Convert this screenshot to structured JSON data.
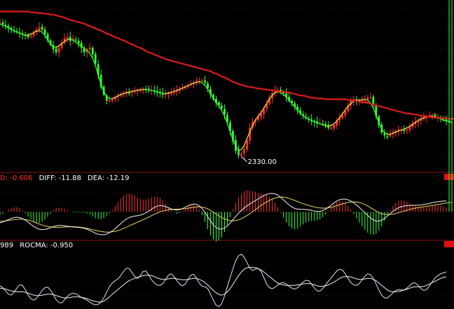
{
  "colors": {
    "background": "#000000",
    "grid": "#5a0a0a",
    "separator": "#8a1414",
    "up": "#ff3030",
    "down": "#33ff33",
    "ma_long": "#e01a1a",
    "ma_short": "#e8e840",
    "line_white": "#f2f2f2",
    "line_yellow": "#e8d860",
    "macd_label_prefix": "#ff3030",
    "label_text": "#ffffff",
    "roc_line": "#e0e0ff",
    "rocma_line": "#f2f2f2"
  },
  "chart_data": [
    {
      "type": "candlestick",
      "panel": "price",
      "ylim": [
        2315,
        2530
      ],
      "x_count": 160,
      "annotation": {
        "text": "2330.00",
        "index": 86,
        "value": 2330
      },
      "price": [
        2510,
        2507,
        2505,
        2502,
        2500,
        2498,
        2497,
        2496,
        2494,
        2492,
        2490,
        2492,
        2496,
        2500,
        2503,
        2500,
        2494,
        2486,
        2480,
        2474,
        2470,
        2476,
        2483,
        2489,
        2490,
        2485,
        2488,
        2486,
        2482,
        2476,
        2470,
        2474,
        2476,
        2467,
        2455,
        2440,
        2424,
        2414,
        2406,
        2406,
        2408,
        2411,
        2413,
        2414,
        2416,
        2418,
        2417,
        2418,
        2419,
        2420,
        2421,
        2422,
        2421,
        2420,
        2420,
        2419,
        2418,
        2416,
        2414,
        2415,
        2416,
        2417,
        2418,
        2420,
        2421,
        2423,
        2424,
        2426,
        2428,
        2430,
        2431,
        2432,
        2433,
        2430,
        2422,
        2414,
        2408,
        2403,
        2400,
        2396,
        2388,
        2378,
        2366,
        2353,
        2340,
        2334,
        2336,
        2342,
        2354,
        2370,
        2378,
        2380,
        2385,
        2389,
        2395,
        2402,
        2410,
        2416,
        2419,
        2420,
        2418,
        2416,
        2411,
        2406,
        2403,
        2398,
        2393,
        2389,
        2386,
        2383,
        2381,
        2380,
        2378,
        2376,
        2376,
        2375,
        2373,
        2370,
        2370,
        2374,
        2380,
        2384,
        2387,
        2393,
        2400,
        2406,
        2408,
        2406,
        2406,
        2407,
        2407,
        2410,
        2411,
        2400,
        2386,
        2374,
        2364,
        2360,
        2359,
        2362,
        2363,
        2365,
        2368,
        2368,
        2367,
        2368,
        2372,
        2376,
        2378,
        2380,
        2382,
        2384,
        2386,
        2386,
        2387,
        2384,
        2384,
        2382,
        2381,
        2379,
        2377,
        2377
      ],
      "ma_long": [
        2524,
        2524,
        2524,
        2524,
        2524,
        2524,
        2524,
        2524,
        2524,
        2524,
        2524,
        2523,
        2523,
        2522,
        2522,
        2522,
        2521,
        2521,
        2520,
        2520,
        2519,
        2518,
        2517,
        2516,
        2514,
        2513,
        2512,
        2511,
        2510,
        2509,
        2508,
        2506,
        2505,
        2503,
        2502,
        2500,
        2499,
        2497,
        2495,
        2494,
        2492,
        2490,
        2489,
        2487,
        2486,
        2484,
        2482,
        2481,
        2479,
        2477,
        2476,
        2474,
        2472,
        2470,
        2469,
        2467,
        2466,
        2464,
        2463,
        2461,
        2460,
        2459,
        2458,
        2457,
        2456,
        2455,
        2454,
        2453,
        2452,
        2451,
        2450,
        2449,
        2448,
        2447,
        2446,
        2445,
        2443,
        2442,
        2440,
        2438,
        2437,
        2435,
        2433,
        2431,
        2430,
        2428,
        2427,
        2426,
        2425,
        2424,
        2424,
        2423,
        2422,
        2422,
        2421,
        2421,
        2420,
        2420,
        2419,
        2419,
        2418,
        2418,
        2417,
        2417,
        2416,
        2415,
        2414,
        2413,
        2413,
        2412,
        2411,
        2410,
        2410,
        2409,
        2409,
        2409,
        2408,
        2408,
        2408,
        2408,
        2408,
        2408,
        2408,
        2408,
        2407,
        2407,
        2406,
        2406,
        2405,
        2404,
        2404,
        2403,
        2402,
        2401,
        2400,
        2399,
        2398,
        2397,
        2396,
        2395,
        2394,
        2393,
        2392,
        2391,
        2390,
        2389,
        2389,
        2388,
        2388,
        2387,
        2386,
        2386,
        2385,
        2385,
        2384,
        2384,
        2384,
        2383,
        2383,
        2383,
        2382,
        2382,
        2382,
        2382
      ],
      "ma_long_name": "",
      "ma_short_name": ""
    },
    {
      "type": "macd",
      "panel": "macd",
      "header": {
        "prefix": "D: -0.606",
        "diff": "DIFF: -11.88",
        "dea": "DEA: -12.19"
      },
      "ylim": [
        -17,
        19
      ],
      "diff": [
        -6.7,
        -6.2,
        -5.5,
        -4.7,
        -4.0,
        -3.5,
        -3.3,
        -3.5,
        -4.1,
        -5.1,
        -6.3,
        -7.6,
        -8.9,
        -10.0,
        -10.6,
        -10.9,
        -10.8,
        -10.3,
        -9.7,
        -9.0,
        -8.6,
        -8.3,
        -8.3,
        -8.5,
        -8.8,
        -9.0,
        -9.3,
        -9.4,
        -9.5,
        -9.7,
        -10.1,
        -10.6,
        -11.3,
        -12.2,
        -13.1,
        -13.7,
        -14.0,
        -14.0,
        -13.6,
        -12.8,
        -11.7,
        -10.3,
        -8.8,
        -7.2,
        -5.7,
        -4.5,
        -3.5,
        -2.9,
        -2.6,
        -2.3,
        -2.0,
        -1.4,
        -0.6,
        0.4,
        1.6,
        2.7,
        3.5,
        3.9,
        3.7,
        3.2,
        2.5,
        1.8,
        1.3,
        1.1,
        1.4,
        2.0,
        2.8,
        3.7,
        4.4,
        4.8,
        4.6,
        3.7,
        2.0,
        -0.3,
        -3.0,
        -5.6,
        -7.9,
        -9.6,
        -10.5,
        -10.6,
        -9.9,
        -8.6,
        -6.8,
        -4.8,
        -2.8,
        -0.9,
        0.8,
        2.4,
        3.7,
        4.8,
        5.9,
        6.9,
        8.0,
        9.0,
        9.9,
        10.7,
        11.2,
        11.3,
        11.0,
        10.2,
        8.9,
        7.4,
        5.7,
        4.2,
        3.0,
        2.1,
        1.7,
        1.5,
        1.5,
        1.4,
        1.2,
        0.9,
        0.5,
        0.3,
        0.3,
        0.8,
        1.6,
        2.8,
        4.1,
        5.5,
        6.6,
        7.4,
        7.8,
        7.8,
        7.4,
        6.6,
        5.5,
        4.2,
        2.7,
        1.1,
        -0.5,
        -2.2,
        -3.7,
        -4.9,
        -5.6,
        -5.7,
        -5.1,
        -4.0,
        -2.6,
        -1.1,
        0.3,
        1.5,
        2.5,
        3.1,
        3.6,
        3.8,
        3.9,
        4.0,
        4.0,
        4.1,
        4.2,
        4.5,
        4.8,
        5.2,
        5.6,
        5.9,
        6.2,
        6.4,
        6.6,
        6.6
      ],
      "dea": [
        -5.8,
        -5.7,
        -5.5,
        -5.3,
        -5.0,
        -4.8,
        -4.6,
        -4.5,
        -4.5,
        -4.7,
        -5.0,
        -5.5,
        -6.1,
        -6.8,
        -7.5,
        -8.1,
        -8.6,
        -8.9,
        -9.2,
        -9.4,
        -9.5,
        -9.5,
        -9.4,
        -9.3,
        -9.2,
        -9.1,
        -9.1,
        -9.2,
        -9.3,
        -9.5,
        -9.8,
        -10.1,
        -10.5,
        -10.9,
        -11.3,
        -11.7,
        -12.0,
        -12.3,
        -12.4,
        -12.4,
        -12.2,
        -11.9,
        -11.5,
        -10.9,
        -10.2,
        -9.4,
        -8.6,
        -7.8,
        -7.1,
        -6.3,
        -5.6,
        -4.8,
        -4.0,
        -3.2,
        -2.3,
        -1.5,
        -0.7,
        0.0,
        0.5,
        0.9,
        1.2,
        1.4,
        1.5,
        1.6,
        1.7,
        1.8,
        2.0,
        2.2,
        2.5,
        2.8,
        3.0,
        3.1,
        2.9,
        2.5,
        1.8,
        0.9,
        -0.2,
        -1.3,
        -2.5,
        -3.5,
        -4.3,
        -4.9,
        -5.3,
        -5.5,
        -5.3,
        -4.9,
        -4.2,
        -3.3,
        -2.3,
        -1.1,
        0.1,
        1.4,
        2.7,
        3.9,
        5.0,
        6.0,
        7.0,
        7.8,
        8.5,
        8.9,
        9.1,
        9.0,
        8.7,
        8.2,
        7.6,
        7.0,
        6.3,
        5.6,
        5.0,
        4.4,
        3.9,
        3.4,
        3.0,
        2.6,
        2.4,
        2.3,
        2.3,
        2.5,
        2.8,
        3.2,
        3.8,
        4.4,
        4.9,
        5.4,
        5.8,
        6.0,
        6.1,
        6.0,
        5.7,
        5.2,
        4.5,
        3.6,
        2.6,
        1.5,
        0.5,
        -0.4,
        -1.1,
        -1.5,
        -1.7,
        -1.6,
        -1.4,
        -1.0,
        -0.5,
        0.0,
        0.5,
        1.0,
        1.5,
        1.9,
        2.3,
        2.6,
        2.9,
        3.2,
        3.4,
        3.7,
        3.9,
        4.2,
        4.5,
        4.8,
        5.1,
        5.4,
        5.6,
        5.8
      ],
      "histogram_scale": 2.2
    },
    {
      "type": "line",
      "panel": "roc",
      "header": {
        "prefix": "989",
        "rocma": "ROCMA: -0.950"
      },
      "ylim": [
        -6,
        7
      ],
      "roc": [
        -1.0,
        -1.4,
        -2.1,
        -2.8,
        -3.0,
        -2.4,
        -1.5,
        -0.8,
        -0.9,
        -1.8,
        -3.0,
        -3.8,
        -4.1,
        -3.7,
        -2.9,
        -2.0,
        -1.4,
        -1.3,
        -1.9,
        -2.9,
        -4.0,
        -4.6,
        -4.7,
        -4.0,
        -3.3,
        -2.8,
        -2.6,
        -2.7,
        -3.1,
        -3.5,
        -3.8,
        -4.1,
        -4.5,
        -4.9,
        -5.1,
        -5.0,
        -4.5,
        -3.6,
        -2.4,
        -1.2,
        -0.4,
        0.1,
        0.5,
        1.2,
        2.1,
        2.8,
        2.7,
        1.9,
        1.0,
        0.6,
        1.2,
        2.1,
        2.2,
        1.3,
        0.3,
        -0.4,
        -0.8,
        -0.9,
        -0.5,
        0.4,
        1.3,
        1.6,
        1.0,
        0.1,
        -0.6,
        -1.0,
        -0.6,
        0.4,
        1.3,
        1.5,
        0.7,
        -0.4,
        -1.1,
        -1.2,
        -1.6,
        -2.8,
        -4.1,
        -5.2,
        -5.5,
        -4.8,
        -3.2,
        -1.2,
        0.8,
        2.7,
        4.4,
        5.5,
        5.8,
        5.2,
        4.0,
        2.8,
        2.3,
        2.6,
        2.8,
        2.1,
        0.8,
        -0.6,
        -1.4,
        -1.6,
        -1.3,
        -0.8,
        -0.4,
        -0.3,
        -0.6,
        -1.1,
        -1.5,
        -1.7,
        -1.4,
        -0.8,
        -0.2,
        0.2,
        0.1,
        -0.6,
        -1.5,
        -2.1,
        -2.1,
        -1.6,
        -0.8,
        0.0,
        0.7,
        1.5,
        2.2,
        2.6,
        2.4,
        1.6,
        0.6,
        -0.3,
        -0.8,
        -0.9,
        -0.5,
        0.3,
        1.1,
        1.6,
        1.4,
        0.6,
        -0.6,
        -1.9,
        -3.0,
        -3.6,
        -3.6,
        -3.1,
        -2.5,
        -2.0,
        -1.8,
        -1.9,
        -1.9,
        -1.5,
        -0.9,
        -0.4,
        -0.4,
        -0.9,
        -1.6,
        -2.0,
        -1.8,
        -1.0,
        -0.1,
        0.7,
        1.2,
        1.6,
        1.8,
        2.0
      ],
      "rocma": [
        -1.5,
        -1.6,
        -1.7,
        -1.9,
        -2.1,
        -2.2,
        -2.3,
        -2.3,
        -2.3,
        -2.4,
        -2.6,
        -2.8,
        -3.0,
        -3.1,
        -3.1,
        -3.0,
        -2.9,
        -2.8,
        -2.8,
        -2.9,
        -3.1,
        -3.3,
        -3.5,
        -3.6,
        -3.6,
        -3.5,
        -3.4,
        -3.4,
        -3.4,
        -3.5,
        -3.6,
        -3.8,
        -4.0,
        -4.2,
        -4.4,
        -4.5,
        -4.5,
        -4.3,
        -3.9,
        -3.4,
        -2.8,
        -2.3,
        -1.8,
        -1.3,
        -0.8,
        -0.3,
        0.1,
        0.4,
        0.6,
        0.8,
        1.0,
        1.2,
        1.3,
        1.3,
        1.2,
        1.0,
        0.7,
        0.5,
        0.4,
        0.4,
        0.5,
        0.6,
        0.6,
        0.5,
        0.4,
        0.3,
        0.3,
        0.4,
        0.5,
        0.6,
        0.6,
        0.4,
        0.1,
        -0.3,
        -0.8,
        -1.4,
        -2.0,
        -2.5,
        -2.9,
        -3.0,
        -2.8,
        -2.3,
        -1.6,
        -0.7,
        0.3,
        1.2,
        2.0,
        2.6,
        2.9,
        3.0,
        3.0,
        2.9,
        2.7,
        2.4,
        2.0,
        1.5,
        1.0,
        0.5,
        0.0,
        -0.4,
        -0.7,
        -0.8,
        -0.9,
        -0.9,
        -0.9,
        -0.9,
        -0.8,
        -0.7,
        -0.6,
        -0.5,
        -0.5,
        -0.6,
        -0.8,
        -1.0,
        -1.1,
        -1.1,
        -1.0,
        -0.8,
        -0.5,
        -0.2,
        0.2,
        0.6,
        0.9,
        1.0,
        1.0,
        0.9,
        0.7,
        0.5,
        0.4,
        0.4,
        0.5,
        0.6,
        0.6,
        0.4,
        0.1,
        -0.4,
        -0.9,
        -1.4,
        -1.9,
        -2.2,
        -2.3,
        -2.3,
        -2.2,
        -2.1,
        -1.9,
        -1.7,
        -1.5,
        -1.3,
        -1.2,
        -1.2,
        -1.2,
        -1.1,
        -0.9,
        -0.6,
        -0.3,
        0.0,
        0.3,
        0.6,
        0.8,
        0.9
      ]
    }
  ]
}
